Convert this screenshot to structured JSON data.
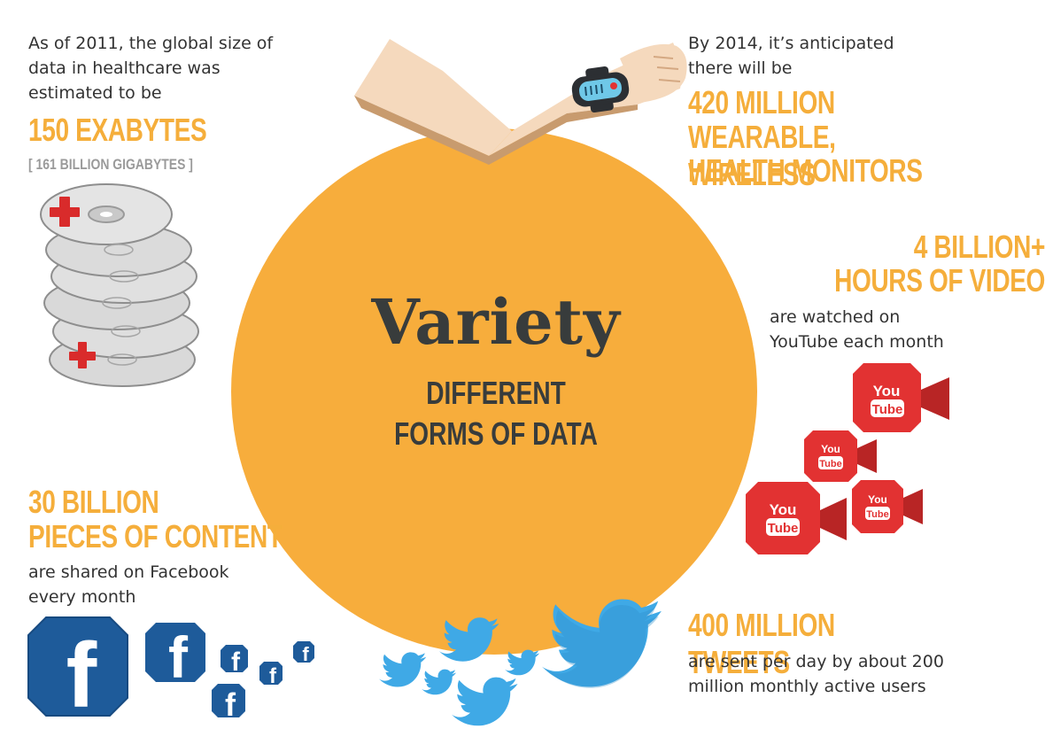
{
  "center": {
    "title": "Variety",
    "subtitle_line1": "DIFFERENT",
    "subtitle_line2": "FORMS OF DATA",
    "circle_color": "#f7ad3c"
  },
  "healthcare": {
    "intro_line1": "As of 2011, the global size of",
    "intro_line2": "data in healthcare was",
    "intro_line3": "estimated to be",
    "headline": "150 EXABYTES",
    "subnote": "[ 161 BILLION GIGABYTES ]",
    "icon": "disc-stack-icon"
  },
  "wearables": {
    "intro_line1": "By 2014, it’s anticipated",
    "intro_line2": "there will be",
    "headline_line1": "420 MILLION",
    "headline_line2": "WEARABLE, WIRELESS",
    "headline_line3": "HEALTH MONITORS",
    "icon": "wrist-monitor-icon"
  },
  "youtube": {
    "headline_line1": "4 BILLION+",
    "headline_line2": "HOURS OF VIDEO",
    "text_line1": "are watched on",
    "text_line2": "YouTube each month",
    "logo_you": "You",
    "logo_tube": "Tube",
    "icon": "video-camera-icon"
  },
  "facebook": {
    "headline_line1": "30 BILLION",
    "headline_line2": "PIECES OF CONTENT",
    "text_line1": "are shared on Facebook",
    "text_line2": "every month",
    "logo_letter": "f",
    "icon": "facebook-icon"
  },
  "twitter": {
    "headline": "400 MILLION TWEETS",
    "text_line1": "are sent per day by about 200",
    "text_line2": "million monthly active users",
    "icon": "twitter-bird-icon"
  },
  "colors": {
    "accent": "#f5ae3b",
    "dark_text": "#383c3c",
    "youtube_red": "#e23232",
    "facebook_blue": "#1e5b9a",
    "twitter_blue": "#3fa9e6"
  }
}
